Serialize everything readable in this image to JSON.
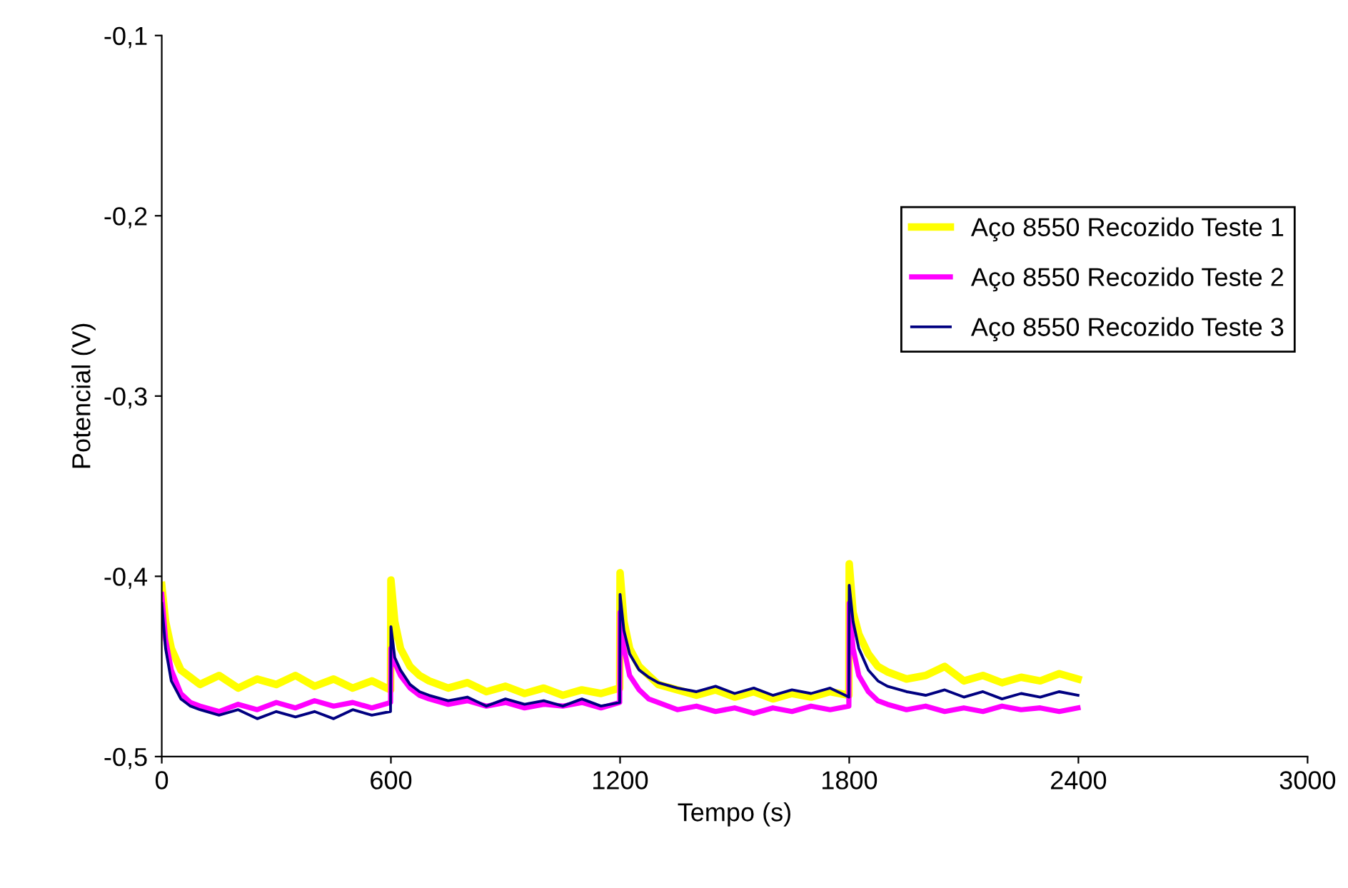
{
  "chart_data": {
    "type": "line",
    "xlabel": "Tempo (s)",
    "ylabel": "Potencial (V)",
    "x": [
      0,
      10,
      25,
      50,
      75,
      100,
      150,
      200,
      250,
      300,
      350,
      400,
      450,
      500,
      550,
      599,
      600,
      610,
      625,
      650,
      675,
      700,
      750,
      800,
      850,
      900,
      950,
      1000,
      1050,
      1100,
      1150,
      1199,
      1200,
      1210,
      1225,
      1250,
      1275,
      1300,
      1350,
      1400,
      1450,
      1500,
      1550,
      1600,
      1650,
      1700,
      1750,
      1799,
      1800,
      1810,
      1825,
      1850,
      1875,
      1900,
      1950,
      2000,
      2050,
      2100,
      2150,
      2200,
      2250,
      2300,
      2350,
      2399
    ],
    "series": [
      {
        "name": "Aço 8550 Recozido Teste 1",
        "color": "#ffff00",
        "values": [
          -0.405,
          -0.425,
          -0.44,
          -0.452,
          -0.456,
          -0.46,
          -0.455,
          -0.462,
          -0.457,
          -0.46,
          -0.455,
          -0.461,
          -0.457,
          -0.462,
          -0.458,
          -0.463,
          -0.402,
          -0.425,
          -0.44,
          -0.45,
          -0.455,
          -0.458,
          -0.462,
          -0.459,
          -0.464,
          -0.461,
          -0.465,
          -0.462,
          -0.466,
          -0.463,
          -0.465,
          -0.462,
          -0.398,
          -0.425,
          -0.44,
          -0.45,
          -0.455,
          -0.46,
          -0.463,
          -0.466,
          -0.463,
          -0.467,
          -0.464,
          -0.468,
          -0.465,
          -0.467,
          -0.464,
          -0.466,
          -0.393,
          -0.42,
          -0.432,
          -0.443,
          -0.45,
          -0.453,
          -0.457,
          -0.455,
          -0.45,
          -0.458,
          -0.455,
          -0.459,
          -0.456,
          -0.458,
          -0.454,
          -0.457
        ]
      },
      {
        "name": "Aço 8550 Recozido Teste 2",
        "color": "#ff00ff",
        "values": [
          -0.41,
          -0.435,
          -0.452,
          -0.465,
          -0.47,
          -0.472,
          -0.475,
          -0.471,
          -0.474,
          -0.47,
          -0.473,
          -0.469,
          -0.472,
          -0.47,
          -0.473,
          -0.47,
          -0.44,
          -0.448,
          -0.455,
          -0.462,
          -0.466,
          -0.468,
          -0.471,
          -0.469,
          -0.472,
          -0.47,
          -0.473,
          -0.471,
          -0.472,
          -0.47,
          -0.473,
          -0.47,
          -0.42,
          -0.44,
          -0.455,
          -0.463,
          -0.468,
          -0.47,
          -0.474,
          -0.472,
          -0.475,
          -0.473,
          -0.476,
          -0.473,
          -0.475,
          -0.472,
          -0.474,
          -0.472,
          -0.415,
          -0.44,
          -0.455,
          -0.464,
          -0.469,
          -0.471,
          -0.474,
          -0.472,
          -0.475,
          -0.473,
          -0.475,
          -0.472,
          -0.474,
          -0.473,
          -0.475,
          -0.473
        ]
      },
      {
        "name": "Aço 8550 Recozido Teste 3",
        "color": "#000080",
        "values": [
          -0.415,
          -0.44,
          -0.458,
          -0.468,
          -0.472,
          -0.474,
          -0.477,
          -0.474,
          -0.479,
          -0.475,
          -0.478,
          -0.475,
          -0.479,
          -0.474,
          -0.477,
          -0.475,
          -0.428,
          -0.445,
          -0.452,
          -0.46,
          -0.464,
          -0.466,
          -0.469,
          -0.467,
          -0.472,
          -0.468,
          -0.471,
          -0.469,
          -0.472,
          -0.468,
          -0.472,
          -0.47,
          -0.41,
          -0.43,
          -0.443,
          -0.452,
          -0.456,
          -0.459,
          -0.462,
          -0.464,
          -0.461,
          -0.465,
          -0.462,
          -0.466,
          -0.463,
          -0.465,
          -0.462,
          -0.467,
          -0.405,
          -0.425,
          -0.44,
          -0.452,
          -0.458,
          -0.461,
          -0.464,
          -0.466,
          -0.463,
          -0.467,
          -0.464,
          -0.468,
          -0.465,
          -0.467,
          -0.464,
          -0.466
        ]
      }
    ],
    "xlim": [
      0,
      3000
    ],
    "xticks": [
      0,
      600,
      1200,
      1800,
      2400,
      3000
    ],
    "ylim": [
      -0.5,
      -0.1
    ],
    "yticks": [
      {
        "value": -0.5,
        "label": "-0,5"
      },
      {
        "value": -0.4,
        "label": "-0,4"
      },
      {
        "value": -0.3,
        "label": "-0,3"
      },
      {
        "value": -0.2,
        "label": "-0,2"
      },
      {
        "value": -0.1,
        "label": "-0,1"
      }
    ],
    "legend": "upper right",
    "grid": false,
    "marker": "none",
    "line_style": "solid"
  }
}
